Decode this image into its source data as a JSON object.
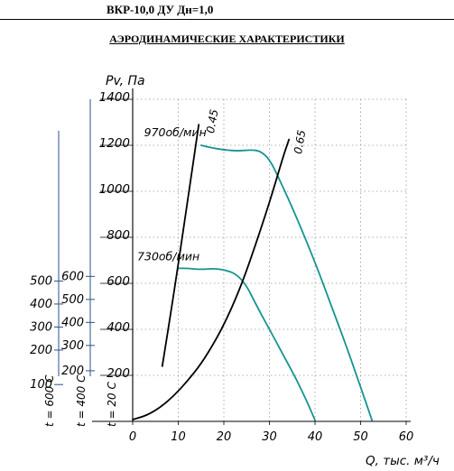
{
  "header": {
    "title": "ВКР-10,0 ДУ Дн=1,0"
  },
  "chart_data": {
    "type": "line",
    "title": "АЭРОДИНАМИЧЕСКИЕ ХАРАКТЕРИСТИКИ",
    "xlabel": "Q, тыс. м³/ч",
    "ylabel": "Pv, Па",
    "xlim": [
      0,
      60
    ],
    "ylim": [
      0,
      1400
    ],
    "grid": true,
    "x_ticks": [
      "0",
      "10",
      "20",
      "30",
      "40",
      "50",
      "60"
    ],
    "y_ticks": [
      "200",
      "400",
      "600",
      "800",
      "1000",
      "1200",
      "1400"
    ],
    "secondary_axes": [
      {
        "label": "t = 20 С",
        "ticks": []
      },
      {
        "label": "t = 400 С",
        "ticks": [
          {
            "label": "200",
            "pv": 220
          },
          {
            "label": "300",
            "pv": 330
          },
          {
            "label": "400",
            "pv": 430
          },
          {
            "label": "500",
            "pv": 530
          },
          {
            "label": "600",
            "pv": 630
          }
        ]
      },
      {
        "label": "t = 600 С",
        "ticks": [
          {
            "label": "100",
            "pv": 160
          },
          {
            "label": "200",
            "pv": 310
          },
          {
            "label": "300",
            "pv": 410
          },
          {
            "label": "400",
            "pv": 510
          },
          {
            "label": "500",
            "pv": 610
          }
        ]
      }
    ],
    "series": [
      {
        "name": "970об/мин",
        "color": "#15948f",
        "x": [
          15,
          17,
          20,
          23,
          26,
          28,
          30,
          32,
          35,
          38,
          41,
          44,
          47,
          50,
          52.5
        ],
        "y": [
          1200,
          1190,
          1180,
          1175,
          1180,
          1175,
          1140,
          1060,
          930,
          790,
          640,
          480,
          320,
          150,
          5
        ]
      },
      {
        "name": "730об/мин",
        "color": "#15948f",
        "x": [
          10,
          12,
          15,
          18,
          21,
          23,
          25,
          27,
          30,
          33,
          36,
          38.5,
          40
        ],
        "y": [
          665,
          665,
          660,
          665,
          655,
          635,
          590,
          510,
          400,
          290,
          180,
          75,
          5
        ]
      },
      {
        "name": "",
        "color": "#000000",
        "x": [
          0,
          3,
          6,
          9,
          12,
          15,
          18,
          21,
          24,
          27,
          30,
          33,
          34.3
        ],
        "y": [
          8,
          25,
          60,
          110,
          175,
          250,
          345,
          460,
          600,
          770,
          950,
          1150,
          1225
        ]
      },
      {
        "name": "",
        "color": "#000000",
        "x": [
          6.5,
          9,
          12,
          14.5
        ],
        "y": [
          240,
          550,
          950,
          1290
        ]
      }
    ],
    "annotations": [
      "0.45",
      "0.65"
    ]
  }
}
